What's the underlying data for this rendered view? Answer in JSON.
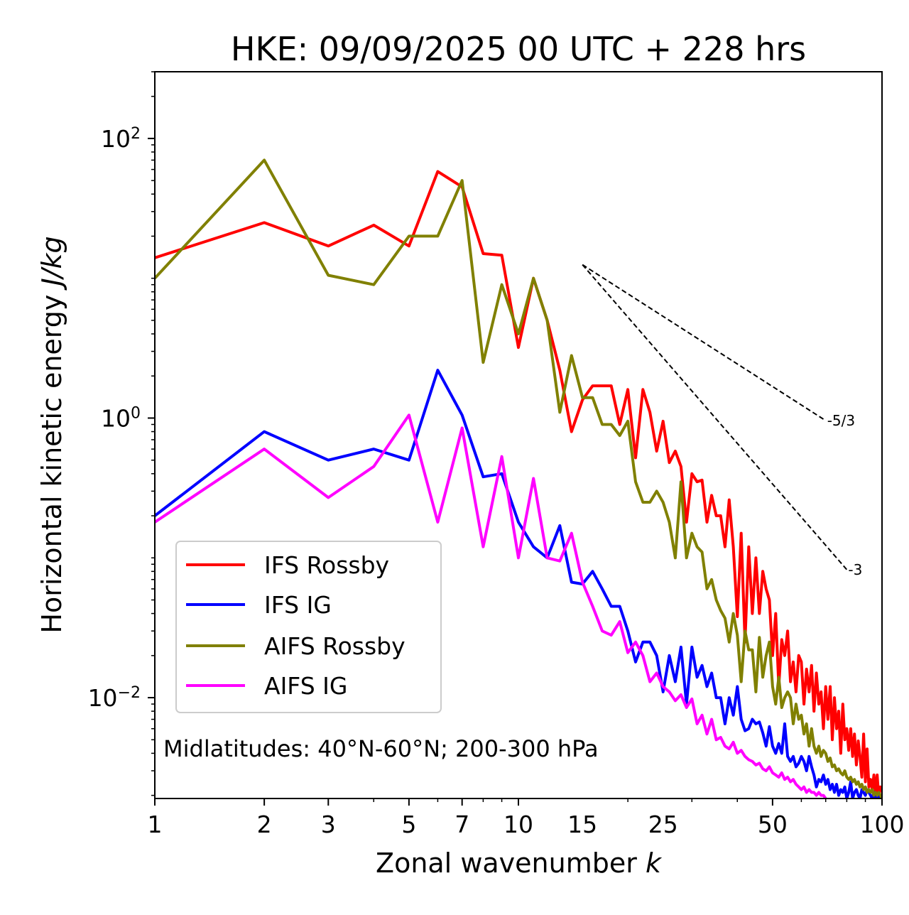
{
  "chart_data": {
    "type": "line",
    "title": "HKE: 09/09/2025 00 UTC + 228 hrs",
    "xlabel_main": "Zonal wavenumber ",
    "xlabel_var": "k",
    "ylabel_main": "Horizontal kinetic energy ",
    "ylabel_var": "J/kg",
    "xscale": "log",
    "yscale": "log",
    "xlim": [
      1,
      100
    ],
    "ylim": [
      0.0019,
      300
    ],
    "x_ticks": [
      {
        "value": 1,
        "label": "1"
      },
      {
        "value": 2,
        "label": "2"
      },
      {
        "value": 3,
        "label": "3"
      },
      {
        "value": 5,
        "label": "5"
      },
      {
        "value": 7,
        "label": "7"
      },
      {
        "value": 10,
        "label": "10"
      },
      {
        "value": 15,
        "label": "15"
      },
      {
        "value": 25,
        "label": "25"
      },
      {
        "value": 50,
        "label": "50"
      },
      {
        "value": 100,
        "label": "100"
      }
    ],
    "y_ticks": [
      {
        "value": 100,
        "base": "10",
        "exp": "2"
      },
      {
        "value": 1,
        "base": "10",
        "exp": "0"
      },
      {
        "value": 0.01,
        "base": "10",
        "exp": "−2"
      }
    ],
    "annotation": "Midlatitudes: 40°N-60°N; 200-300 hPa",
    "legend_position": "lower-left",
    "series": [
      {
        "name": "IFS Rossby",
        "color": "#ff0000",
        "x": [
          1,
          2,
          3,
          4,
          5,
          6,
          7,
          8,
          9,
          10,
          11,
          12,
          13,
          14,
          15,
          16,
          17,
          18,
          19,
          20,
          21,
          22,
          23,
          24,
          25,
          26,
          27,
          28,
          29,
          30,
          31,
          32,
          33,
          34,
          35,
          36,
          37,
          38,
          39,
          40,
          41,
          42,
          43,
          44,
          45,
          46,
          47,
          48,
          49,
          50,
          51,
          52,
          53,
          54,
          55,
          56,
          57,
          58,
          59,
          60,
          61,
          62,
          63,
          64,
          65,
          66,
          67,
          68,
          69,
          70,
          71,
          72,
          73,
          74,
          75,
          76,
          77,
          78,
          79,
          80,
          81,
          82,
          83,
          84,
          85,
          86,
          87,
          88,
          89,
          90,
          91,
          92,
          93,
          94,
          95,
          96,
          97,
          98,
          99,
          100
        ],
        "y": [
          14,
          25,
          17,
          24,
          17,
          58,
          45,
          15,
          14.6,
          3.2,
          10,
          5,
          2.2,
          0.8,
          1.35,
          1.7,
          1.7,
          1.7,
          0.9,
          1.6,
          0.52,
          1.6,
          1.1,
          0.58,
          0.95,
          0.48,
          0.58,
          0.45,
          0.18,
          0.4,
          0.35,
          0.36,
          0.18,
          0.28,
          0.2,
          0.2,
          0.12,
          0.26,
          0.12,
          0.038,
          0.15,
          0.025,
          0.12,
          0.04,
          0.1,
          0.04,
          0.08,
          0.06,
          0.05,
          0.02,
          0.04,
          0.012,
          0.026,
          0.02,
          0.03,
          0.013,
          0.018,
          0.011,
          0.02,
          0.018,
          0.009,
          0.016,
          0.011,
          0.017,
          0.008,
          0.015,
          0.009,
          0.011,
          0.006,
          0.012,
          0.007,
          0.012,
          0.005,
          0.01,
          0.006,
          0.008,
          0.004,
          0.009,
          0.005,
          0.006,
          0.0042,
          0.006,
          0.0038,
          0.0055,
          0.0033,
          0.0049,
          0.0038,
          0.0027,
          0.0055,
          0.0025,
          0.0043,
          0.0023,
          0.0026,
          0.0022,
          0.0028,
          0.0021,
          0.0028,
          0.0019,
          0.0023,
          0.0022
        ]
      },
      {
        "name": "IFS IG",
        "color": "#0000ff",
        "x": [
          1,
          2,
          3,
          4,
          5,
          6,
          7,
          8,
          9,
          10,
          11,
          12,
          13,
          14,
          15,
          16,
          17,
          18,
          19,
          20,
          21,
          22,
          23,
          24,
          25,
          26,
          27,
          28,
          29,
          30,
          31,
          32,
          33,
          34,
          35,
          36,
          37,
          38,
          39,
          40,
          41,
          42,
          43,
          44,
          45,
          46,
          47,
          48,
          49,
          50,
          51,
          52,
          53,
          54,
          55,
          56,
          57,
          58,
          59,
          60,
          61,
          62,
          63,
          64,
          65,
          66,
          67,
          68,
          69,
          70,
          71,
          72,
          73,
          74,
          75,
          76,
          77,
          78,
          79,
          80,
          81,
          82,
          83,
          84,
          85,
          86,
          87,
          88,
          89,
          90,
          91,
          92,
          93,
          94,
          95,
          96,
          97,
          98,
          99,
          100
        ],
        "y": [
          0.2,
          0.8,
          0.5,
          0.6,
          0.5,
          2.2,
          1.05,
          0.38,
          0.4,
          0.18,
          0.12,
          0.1,
          0.17,
          0.067,
          0.065,
          0.08,
          0.06,
          0.045,
          0.045,
          0.03,
          0.018,
          0.025,
          0.025,
          0.02,
          0.011,
          0.02,
          0.013,
          0.023,
          0.009,
          0.023,
          0.014,
          0.017,
          0.012,
          0.015,
          0.01,
          0.01,
          0.0065,
          0.01,
          0.0075,
          0.012,
          0.007,
          0.0058,
          0.006,
          0.007,
          0.0065,
          0.0067,
          0.0056,
          0.0045,
          0.0062,
          0.0045,
          0.004,
          0.0047,
          0.004,
          0.0065,
          0.0038,
          0.0035,
          0.0038,
          0.0032,
          0.0034,
          0.0038,
          0.0035,
          0.003,
          0.0038,
          0.0032,
          0.0028,
          0.0023,
          0.0026,
          0.0025,
          0.0028,
          0.0024,
          0.0026,
          0.0022,
          0.0024,
          0.0021,
          0.0024,
          0.002,
          0.0022,
          0.0021,
          0.0023,
          0.0019,
          0.0021,
          0.0025,
          0.0019,
          0.0021,
          0.0022,
          0.002,
          0.0019,
          0.0022,
          0.0021,
          0.002,
          0.0022,
          0.0021,
          0.002,
          0.0019,
          0.0021,
          0.0019,
          0.002,
          0.0019,
          0.002,
          0.0019
        ]
      },
      {
        "name": "AIFS Rossby",
        "color": "#808000",
        "x": [
          1,
          2,
          3,
          4,
          5,
          6,
          7,
          8,
          9,
          10,
          11,
          12,
          13,
          14,
          15,
          16,
          17,
          18,
          19,
          20,
          21,
          22,
          23,
          24,
          25,
          26,
          27,
          28,
          29,
          30,
          31,
          32,
          33,
          34,
          35,
          36,
          37,
          38,
          39,
          40,
          41,
          42,
          43,
          44,
          45,
          46,
          47,
          48,
          49,
          50,
          51,
          52,
          53,
          54,
          55,
          56,
          57,
          58,
          59,
          60,
          61,
          62,
          63,
          64,
          65,
          66,
          67,
          68,
          69,
          70,
          71,
          72,
          73,
          74,
          75,
          76,
          77,
          78,
          79,
          80,
          81,
          82,
          83,
          84,
          85,
          86,
          87,
          88,
          89,
          90,
          91,
          92,
          93,
          94,
          95,
          96,
          97,
          98,
          99,
          100
        ],
        "y": [
          10,
          70,
          10.5,
          9,
          20,
          20,
          50,
          2.5,
          9,
          4,
          10,
          5,
          1.1,
          2.8,
          1.4,
          1.4,
          0.9,
          0.9,
          0.75,
          0.95,
          0.35,
          0.25,
          0.25,
          0.3,
          0.25,
          0.18,
          0.1,
          0.35,
          0.1,
          0.15,
          0.12,
          0.11,
          0.06,
          0.07,
          0.05,
          0.042,
          0.037,
          0.025,
          0.04,
          0.028,
          0.013,
          0.03,
          0.022,
          0.022,
          0.011,
          0.027,
          0.014,
          0.02,
          0.025,
          0.012,
          0.009,
          0.014,
          0.0085,
          0.01,
          0.011,
          0.01,
          0.0065,
          0.009,
          0.007,
          0.0075,
          0.0055,
          0.0065,
          0.0045,
          0.006,
          0.0045,
          0.004,
          0.0045,
          0.0038,
          0.0042,
          0.004,
          0.0035,
          0.0037,
          0.0032,
          0.0033,
          0.003,
          0.0031,
          0.0029,
          0.0028,
          0.003,
          0.0027,
          0.0026,
          0.0027,
          0.0025,
          0.0026,
          0.0024,
          0.0025,
          0.0023,
          0.0024,
          0.0022,
          0.0023,
          0.0021,
          0.0022,
          0.0021,
          0.0022,
          0.002,
          0.0021,
          0.002,
          0.0021,
          0.002,
          0.0019
        ]
      },
      {
        "name": "AIFS IG",
        "color": "#ff00ff",
        "x": [
          1,
          2,
          3,
          4,
          5,
          6,
          7,
          8,
          9,
          10,
          11,
          12,
          13,
          14,
          15,
          16,
          17,
          18,
          19,
          20,
          21,
          22,
          23,
          24,
          25,
          26,
          27,
          28,
          29,
          30,
          31,
          32,
          33,
          34,
          35,
          36,
          37,
          38,
          39,
          40,
          41,
          42,
          43,
          44,
          45,
          46,
          47,
          48,
          49,
          50,
          51,
          52,
          53,
          54,
          55,
          56,
          57,
          58,
          59,
          60,
          61,
          62,
          63,
          64,
          65,
          66,
          67,
          68,
          69,
          70
        ],
        "y": [
          0.18,
          0.6,
          0.27,
          0.45,
          1.05,
          0.18,
          0.85,
          0.12,
          0.53,
          0.1,
          0.37,
          0.1,
          0.095,
          0.15,
          0.067,
          0.045,
          0.03,
          0.028,
          0.035,
          0.021,
          0.025,
          0.02,
          0.013,
          0.015,
          0.012,
          0.011,
          0.0095,
          0.0105,
          0.0085,
          0.0098,
          0.0065,
          0.0075,
          0.0055,
          0.007,
          0.005,
          0.0052,
          0.0045,
          0.0043,
          0.0048,
          0.004,
          0.0042,
          0.0038,
          0.0036,
          0.0035,
          0.0033,
          0.0034,
          0.0031,
          0.003,
          0.0032,
          0.0029,
          0.0028,
          0.0027,
          0.0029,
          0.0026,
          0.0027,
          0.0025,
          0.0026,
          0.0024,
          0.0023,
          0.0022,
          0.0023,
          0.0021,
          0.0022,
          0.0021,
          0.0021,
          0.002,
          0.0021,
          0.002,
          0.002,
          0.0019
        ]
      }
    ],
    "reference_slopes": [
      {
        "label": "-5/3",
        "slope": -1.6667,
        "x_start": 15,
        "x_end": 70,
        "y_start": 12.5
      },
      {
        "label": "-3",
        "slope": -3,
        "x_start": 15,
        "x_end": 80,
        "y_start": 12.5
      }
    ]
  }
}
